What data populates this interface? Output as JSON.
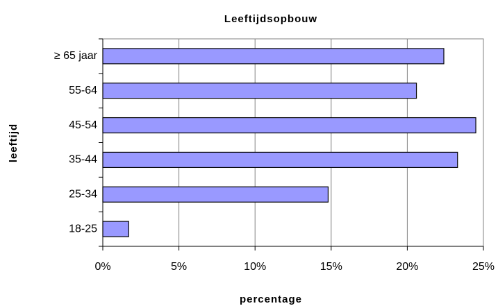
{
  "chart_data": {
    "type": "bar",
    "orientation": "horizontal",
    "title": "Leeftijdsopbouw",
    "x_label": "percentage",
    "y_label": "leeftijd",
    "categories": [
      "≥ 65 jaar",
      "55-64",
      "45-54",
      "35-44",
      "25-34",
      "18-25"
    ],
    "values": [
      22.4,
      20.6,
      24.5,
      23.3,
      14.8,
      1.7
    ],
    "color": "#9999ff",
    "xlim": [
      0,
      25
    ],
    "xticks": [
      {
        "value": 0,
        "label": "0%"
      },
      {
        "value": 5,
        "label": "5%"
      },
      {
        "value": 10,
        "label": "10%"
      },
      {
        "value": 15,
        "label": "15%"
      },
      {
        "value": 20,
        "label": "20%"
      },
      {
        "value": 25,
        "label": "25%"
      }
    ],
    "grid": true
  }
}
